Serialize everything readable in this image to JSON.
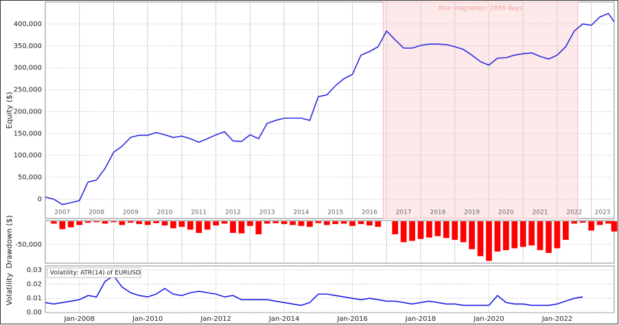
{
  "chart_data": [
    {
      "type": "line",
      "ylabel": "Equity ($)",
      "x": [
        2007,
        2007.25,
        2007.5,
        2007.75,
        2008,
        2008.25,
        2008.5,
        2008.75,
        2009,
        2009.25,
        2009.5,
        2009.75,
        2010,
        2010.25,
        2010.5,
        2010.75,
        2011,
        2011.25,
        2011.5,
        2011.75,
        2012,
        2012.25,
        2012.5,
        2012.75,
        2013,
        2013.25,
        2013.5,
        2013.75,
        2014,
        2014.25,
        2014.5,
        2014.75,
        2015,
        2015.25,
        2015.5,
        2015.75,
        2016,
        2016.25,
        2016.5,
        2016.75,
        2017,
        2017.25,
        2017.5,
        2017.75,
        2018,
        2018.25,
        2018.5,
        2018.75,
        2019,
        2019.25,
        2019.5,
        2019.75,
        2020,
        2020.25,
        2020.5,
        2020.75,
        2021,
        2021.25,
        2021.5,
        2021.75,
        2022,
        2022.25,
        2022.5,
        2022.75,
        2023,
        2023.25,
        2023.5,
        2023.67
      ],
      "series": [
        {
          "name": "Equity",
          "color": "#2a2ae0",
          "values": [
            5000,
            0,
            -12000,
            -8000,
            -3000,
            39000,
            44000,
            70000,
            107000,
            121000,
            141000,
            146000,
            146000,
            152000,
            147000,
            141000,
            144000,
            138000,
            130000,
            138000,
            147000,
            154000,
            133000,
            132000,
            147000,
            138000,
            173000,
            180000,
            185000,
            185000,
            185000,
            180000,
            234000,
            238000,
            259000,
            275000,
            285000,
            329000,
            337000,
            348000,
            384000,
            364000,
            345000,
            345000,
            351000,
            354000,
            354000,
            353000,
            348000,
            342000,
            329000,
            314000,
            306000,
            322000,
            323000,
            329000,
            332000,
            334000,
            326000,
            320000,
            329000,
            348000,
            384000,
            400000,
            397000,
            416000,
            424000,
            405000
          ]
        }
      ],
      "xlim": [
        2007,
        2023.67
      ],
      "ylim": [
        -44000,
        450000
      ],
      "yticks": [
        0,
        {
          "value": 50000,
          "label": "50,000"
        },
        {
          "value": 100000,
          "label": "100,000"
        },
        {
          "value": 150000,
          "label": "150,000"
        },
        {
          "value": 200000,
          "label": "200,000"
        },
        {
          "value": 250000,
          "label": "250,000"
        },
        {
          "value": 300000,
          "label": "300,000"
        },
        {
          "value": 350000,
          "label": "350,000"
        },
        {
          "value": 400000,
          "label": "400,000"
        }
      ],
      "xgrid": [
        2008,
        2009,
        2010,
        2011,
        2012,
        2013,
        2014,
        2015,
        2016,
        2017,
        2018,
        2019,
        2020,
        2021,
        2022,
        2023
      ],
      "xticks": [
        {
          "value": 2007.5,
          "label": "2007"
        },
        {
          "value": 2008.5,
          "label": "2008"
        },
        {
          "value": 2009.5,
          "label": "2009"
        },
        {
          "value": 2010.5,
          "label": "2010"
        },
        {
          "value": 2011.5,
          "label": "2011"
        },
        {
          "value": 2012.5,
          "label": "2012"
        },
        {
          "value": 2013.5,
          "label": "2013"
        },
        {
          "value": 2014.5,
          "label": "2014"
        },
        {
          "value": 2015.5,
          "label": "2015"
        },
        {
          "value": 2016.5,
          "label": "2016"
        },
        {
          "value": 2017.5,
          "label": "2017"
        },
        {
          "value": 2018.5,
          "label": "2018"
        },
        {
          "value": 2019.5,
          "label": "2019"
        },
        {
          "value": 2020.5,
          "label": "2020"
        },
        {
          "value": 2021.5,
          "label": "2021"
        },
        {
          "value": 2022.5,
          "label": "2022"
        },
        {
          "value": 2023.33,
          "label": "2023"
        }
      ],
      "stagnation": {
        "label": "Max stagnation: 2856 days",
        "start": 2016.9,
        "end": 2022.6
      }
    },
    {
      "type": "bar",
      "ylabel": "Drawdown ($)",
      "x": [
        2007,
        2007.25,
        2007.5,
        2007.75,
        2008,
        2008.25,
        2008.5,
        2008.75,
        2009,
        2009.25,
        2009.5,
        2009.75,
        2010,
        2010.25,
        2010.5,
        2010.75,
        2011,
        2011.25,
        2011.5,
        2011.75,
        2012,
        2012.25,
        2012.5,
        2012.75,
        2013,
        2013.25,
        2013.5,
        2013.75,
        2014,
        2014.25,
        2014.5,
        2014.75,
        2015,
        2015.25,
        2015.5,
        2015.75,
        2016,
        2016.25,
        2016.5,
        2016.75,
        2017,
        2017.25,
        2017.5,
        2017.75,
        2018,
        2018.25,
        2018.5,
        2018.75,
        2019,
        2019.25,
        2019.5,
        2019.75,
        2020,
        2020.25,
        2020.5,
        2020.75,
        2021,
        2021.25,
        2021.5,
        2021.75,
        2022,
        2022.25,
        2022.5,
        2022.75,
        2023,
        2023.25,
        2023.5,
        2023.67
      ],
      "series": [
        {
          "name": "Drawdown",
          "color": "#ff0000",
          "values": [
            0,
            -5000,
            -17000,
            -13000,
            -8000,
            -3000,
            -2000,
            -5000,
            -2000,
            -8000,
            -3000,
            -6000,
            -8000,
            -4000,
            -9000,
            -15000,
            -12000,
            -18000,
            -25000,
            -18000,
            -9000,
            -5000,
            -25000,
            -26000,
            -10000,
            -28000,
            -5000,
            -4000,
            -6000,
            -8000,
            -10000,
            -12000,
            -4000,
            -8000,
            -6000,
            -5000,
            -10000,
            -6000,
            -9000,
            -12000,
            0,
            -28000,
            -45000,
            -42000,
            -38000,
            -35000,
            -32000,
            -36000,
            -40000,
            -45000,
            -60000,
            -75000,
            -85000,
            -65000,
            -62000,
            -58000,
            -55000,
            -52000,
            -62000,
            -68000,
            -58000,
            -40000,
            -5000,
            -3000,
            -20000,
            -8000,
            -5000,
            -22000
          ]
        }
      ],
      "xlim": [
        2007,
        2023.67
      ],
      "ylim": [
        -90000,
        1500
      ],
      "yticks": [
        {
          "value": -50000,
          "label": "-50,000"
        }
      ],
      "xgrid": [
        2008,
        2009,
        2010,
        2011,
        2012,
        2013,
        2014,
        2015,
        2016,
        2017,
        2018,
        2019,
        2020,
        2021,
        2022,
        2023
      ]
    },
    {
      "type": "line",
      "ylabel": "Volatility",
      "x": [
        2007,
        2007.25,
        2007.5,
        2007.75,
        2008,
        2008.25,
        2008.5,
        2008.75,
        2009,
        2009.25,
        2009.5,
        2009.75,
        2010,
        2010.25,
        2010.5,
        2010.75,
        2011,
        2011.25,
        2011.5,
        2011.75,
        2012,
        2012.25,
        2012.5,
        2012.75,
        2013,
        2013.25,
        2013.5,
        2013.75,
        2014,
        2014.25,
        2014.5,
        2014.75,
        2015,
        2015.25,
        2015.5,
        2015.75,
        2016,
        2016.25,
        2016.5,
        2016.75,
        2017,
        2017.25,
        2017.5,
        2017.75,
        2018,
        2018.25,
        2018.5,
        2018.75,
        2019,
        2019.25,
        2019.5,
        2019.75,
        2020,
        2020.25,
        2020.5,
        2020.75,
        2021,
        2021.25,
        2021.5,
        2021.75,
        2022,
        2022.25,
        2022.5,
        2022.75,
        2023,
        2023.25,
        2023.5,
        2023.67
      ],
      "series": [
        {
          "name": "Volatility: ATR(14) of EURUSD",
          "color": "#1a1ae6",
          "values": [
            0.007,
            0.006,
            0.007,
            0.008,
            0.009,
            0.012,
            0.011,
            0.022,
            0.026,
            0.018,
            0.014,
            0.012,
            0.011,
            0.013,
            0.017,
            0.013,
            0.012,
            0.014,
            0.015,
            0.014,
            0.013,
            0.011,
            0.012,
            0.009,
            0.009,
            0.009,
            0.009,
            0.008,
            0.007,
            0.006,
            0.005,
            0.007,
            0.013,
            0.013,
            0.012,
            0.011,
            0.01,
            0.009,
            0.01,
            0.009,
            0.008,
            0.008,
            0.007,
            0.006,
            0.007,
            0.008,
            0.007,
            0.006,
            0.006,
            0.005,
            0.005,
            0.005,
            0.005,
            0.012,
            0.007,
            0.006,
            0.006,
            0.005,
            0.005,
            0.005,
            0.006,
            0.008,
            0.01,
            0.011,
            null,
            null,
            null,
            null
          ]
        }
      ],
      "xlim": [
        2007,
        2023.67
      ],
      "ylim": [
        -0.00015,
        0.033
      ],
      "yticks": [
        {
          "value": 0,
          "label": "0.00"
        },
        {
          "value": 0.01,
          "label": "0.01"
        },
        {
          "value": 0.02,
          "label": "0.02"
        },
        {
          "value": 0.03,
          "label": "0.03"
        }
      ],
      "xticks": [
        {
          "value": 2008,
          "label": "Jan-2008"
        },
        {
          "value": 2010,
          "label": "Jan-2010"
        },
        {
          "value": 2012,
          "label": "Jan-2012"
        },
        {
          "value": 2014,
          "label": "Jan-2014"
        },
        {
          "value": 2016,
          "label": "Jan-2016"
        },
        {
          "value": 2018,
          "label": "Jan-2018"
        },
        {
          "value": 2020,
          "label": "Jan-2020"
        },
        {
          "value": 2022,
          "label": "Jan-2022"
        }
      ],
      "legend": "top-left"
    }
  ]
}
